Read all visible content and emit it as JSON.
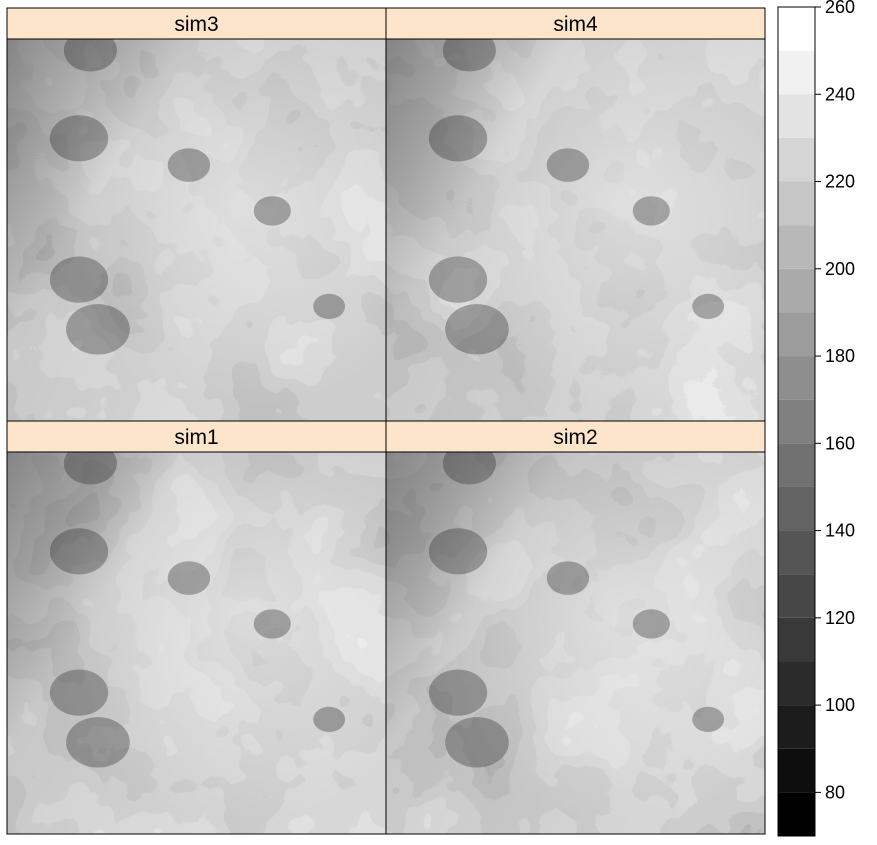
{
  "chart_data": {
    "type": "heatmap",
    "panels": [
      {
        "label": "sim3",
        "row": 0,
        "col": 0
      },
      {
        "label": "sim4",
        "row": 0,
        "col": 1
      },
      {
        "label": "sim1",
        "row": 1,
        "col": 0
      },
      {
        "label": "sim2",
        "row": 1,
        "col": 1
      }
    ],
    "colorkey": {
      "range": [
        70,
        260
      ],
      "breaks": [
        70,
        80,
        90,
        100,
        110,
        120,
        130,
        140,
        150,
        160,
        170,
        180,
        190,
        200,
        210,
        220,
        230,
        240,
        250,
        260
      ],
      "ticks": [
        80,
        100,
        120,
        140,
        160,
        180,
        200,
        220,
        240,
        260
      ],
      "tick_labels": [
        "80",
        "100",
        "120",
        "140",
        "160",
        "180",
        "200",
        "220",
        "240",
        "260"
      ],
      "palette": "grayscale"
    },
    "strip_color": "#fde5cc"
  }
}
